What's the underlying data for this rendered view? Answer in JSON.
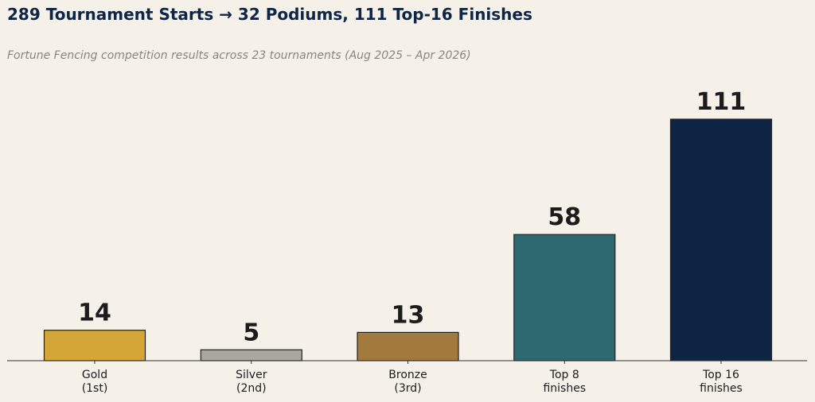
{
  "header": {
    "title": "289 Tournament Starts → 32 Podiums, 111 Top-16 Finishes",
    "subtitle": "Fortune Fencing competition results across 23 tournaments (Aug 2025 – Apr 2026)"
  },
  "chart_data": {
    "type": "bar",
    "title": "289 Tournament Starts → 32 Podiums, 111 Top-16 Finishes",
    "subtitle": "Fortune Fencing competition results across 23 tournaments (Aug 2025 – Apr 2026)",
    "categories": [
      [
        "Gold",
        "(1st)"
      ],
      [
        "Silver",
        "(2nd)"
      ],
      [
        "Bronze",
        "(3rd)"
      ],
      [
        "Top 8",
        "finishes"
      ],
      [
        "Top 16",
        "finishes"
      ]
    ],
    "values": [
      14,
      5,
      13,
      58,
      111
    ],
    "colors": [
      "#d4a537",
      "#aaa7a3",
      "#a37a3e",
      "#2e6870",
      "#0d2543"
    ],
    "xlabel": "",
    "ylabel": "",
    "ylim": [
      0,
      111
    ],
    "grid": false,
    "legend": "none"
  }
}
